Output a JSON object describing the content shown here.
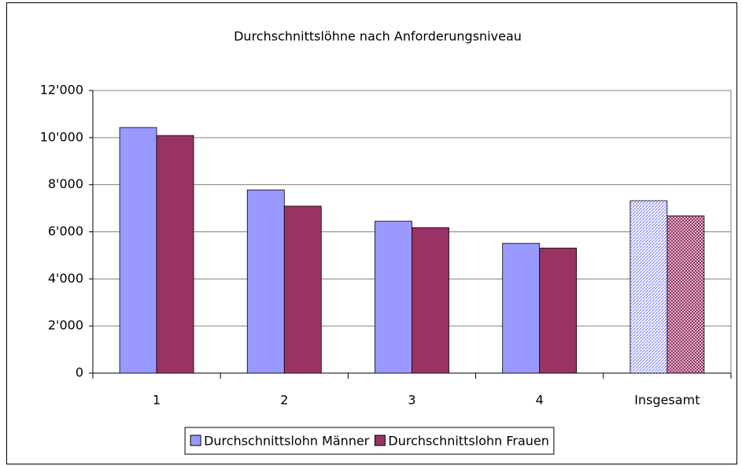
{
  "chart_data": {
    "type": "bar",
    "title": "Durchschnittslöhne nach Anforderungsniveau",
    "categories": [
      "1",
      "2",
      "3",
      "4",
      "Insgesamt"
    ],
    "series": [
      {
        "name": "Durchschnittslohn Männer",
        "color": "#9999ff",
        "values": [
          10430,
          7780,
          6450,
          5510,
          7320
        ]
      },
      {
        "name": "Durchschnittslohn Frauen",
        "color": "#993366",
        "values": [
          10090,
          7090,
          6180,
          5310,
          6680
        ]
      }
    ],
    "hatched": [
      false,
      false,
      false,
      false,
      true
    ],
    "ylim": [
      0,
      12000
    ],
    "yticks": [
      0,
      {
        "value": 2000,
        "label": "2'000"
      },
      {
        "value": 4000,
        "label": "4'000"
      },
      {
        "value": 6000,
        "label": "6'000"
      },
      {
        "value": 8000,
        "label": "8'000"
      },
      {
        "value": 10000,
        "label": "10'000"
      },
      {
        "value": 12000,
        "label": "12'000"
      }
    ],
    "grid": true,
    "legend": "bottom"
  }
}
